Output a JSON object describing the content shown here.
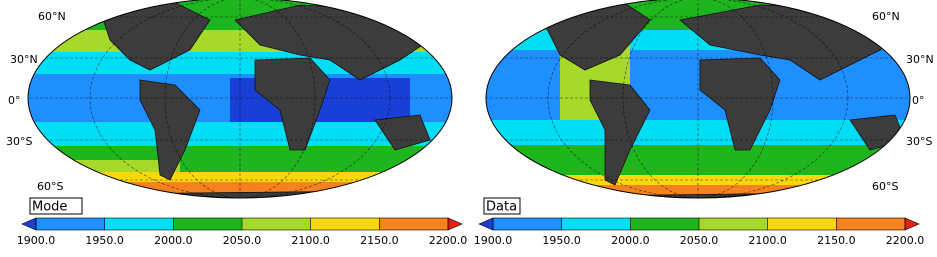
{
  "panels": [
    {
      "label": "Mode",
      "lat_labels": [
        "60°N",
        "30°N",
        "0°",
        "30°S",
        "60°S"
      ],
      "colorbar": {
        "ticks": [
          {
            "value": 1900,
            "label": "1900.0"
          },
          {
            "value": 1950,
            "label": "1950.0"
          },
          {
            "value": 2000,
            "label": "2000.0"
          },
          {
            "value": 2050,
            "label": "2050.0"
          },
          {
            "value": 2100,
            "label": "2100.0"
          },
          {
            "value": 2150,
            "label": "2150.0"
          },
          {
            "value": 2200,
            "label": "2200.0"
          }
        ],
        "colors": [
          "#1f8fff",
          "#00ddf5",
          "#1fb51f",
          "#a6d92a",
          "#f7d80a",
          "#f5821f"
        ],
        "under_color": "#1a3fd6",
        "over_color": "#e8200f"
      }
    },
    {
      "label": "Data",
      "lat_labels": [
        "60°N",
        "30°N",
        "0°",
        "30°S",
        "60°S"
      ],
      "colorbar": {
        "ticks": [
          {
            "value": 1900,
            "label": "1900.0"
          },
          {
            "value": 1950,
            "label": "1950.0"
          },
          {
            "value": 2000,
            "label": "2000.0"
          },
          {
            "value": 2050,
            "label": "2050.0"
          },
          {
            "value": 2100,
            "label": "2100.0"
          },
          {
            "value": 2150,
            "label": "2150.0"
          },
          {
            "value": 2200,
            "label": "2200.0"
          }
        ],
        "colors": [
          "#1f8fff",
          "#00ddf5",
          "#1fb51f",
          "#a6d92a",
          "#f7d80a",
          "#f5821f"
        ],
        "under_color": "#1a3fd6",
        "over_color": "#e8200f"
      }
    }
  ]
}
